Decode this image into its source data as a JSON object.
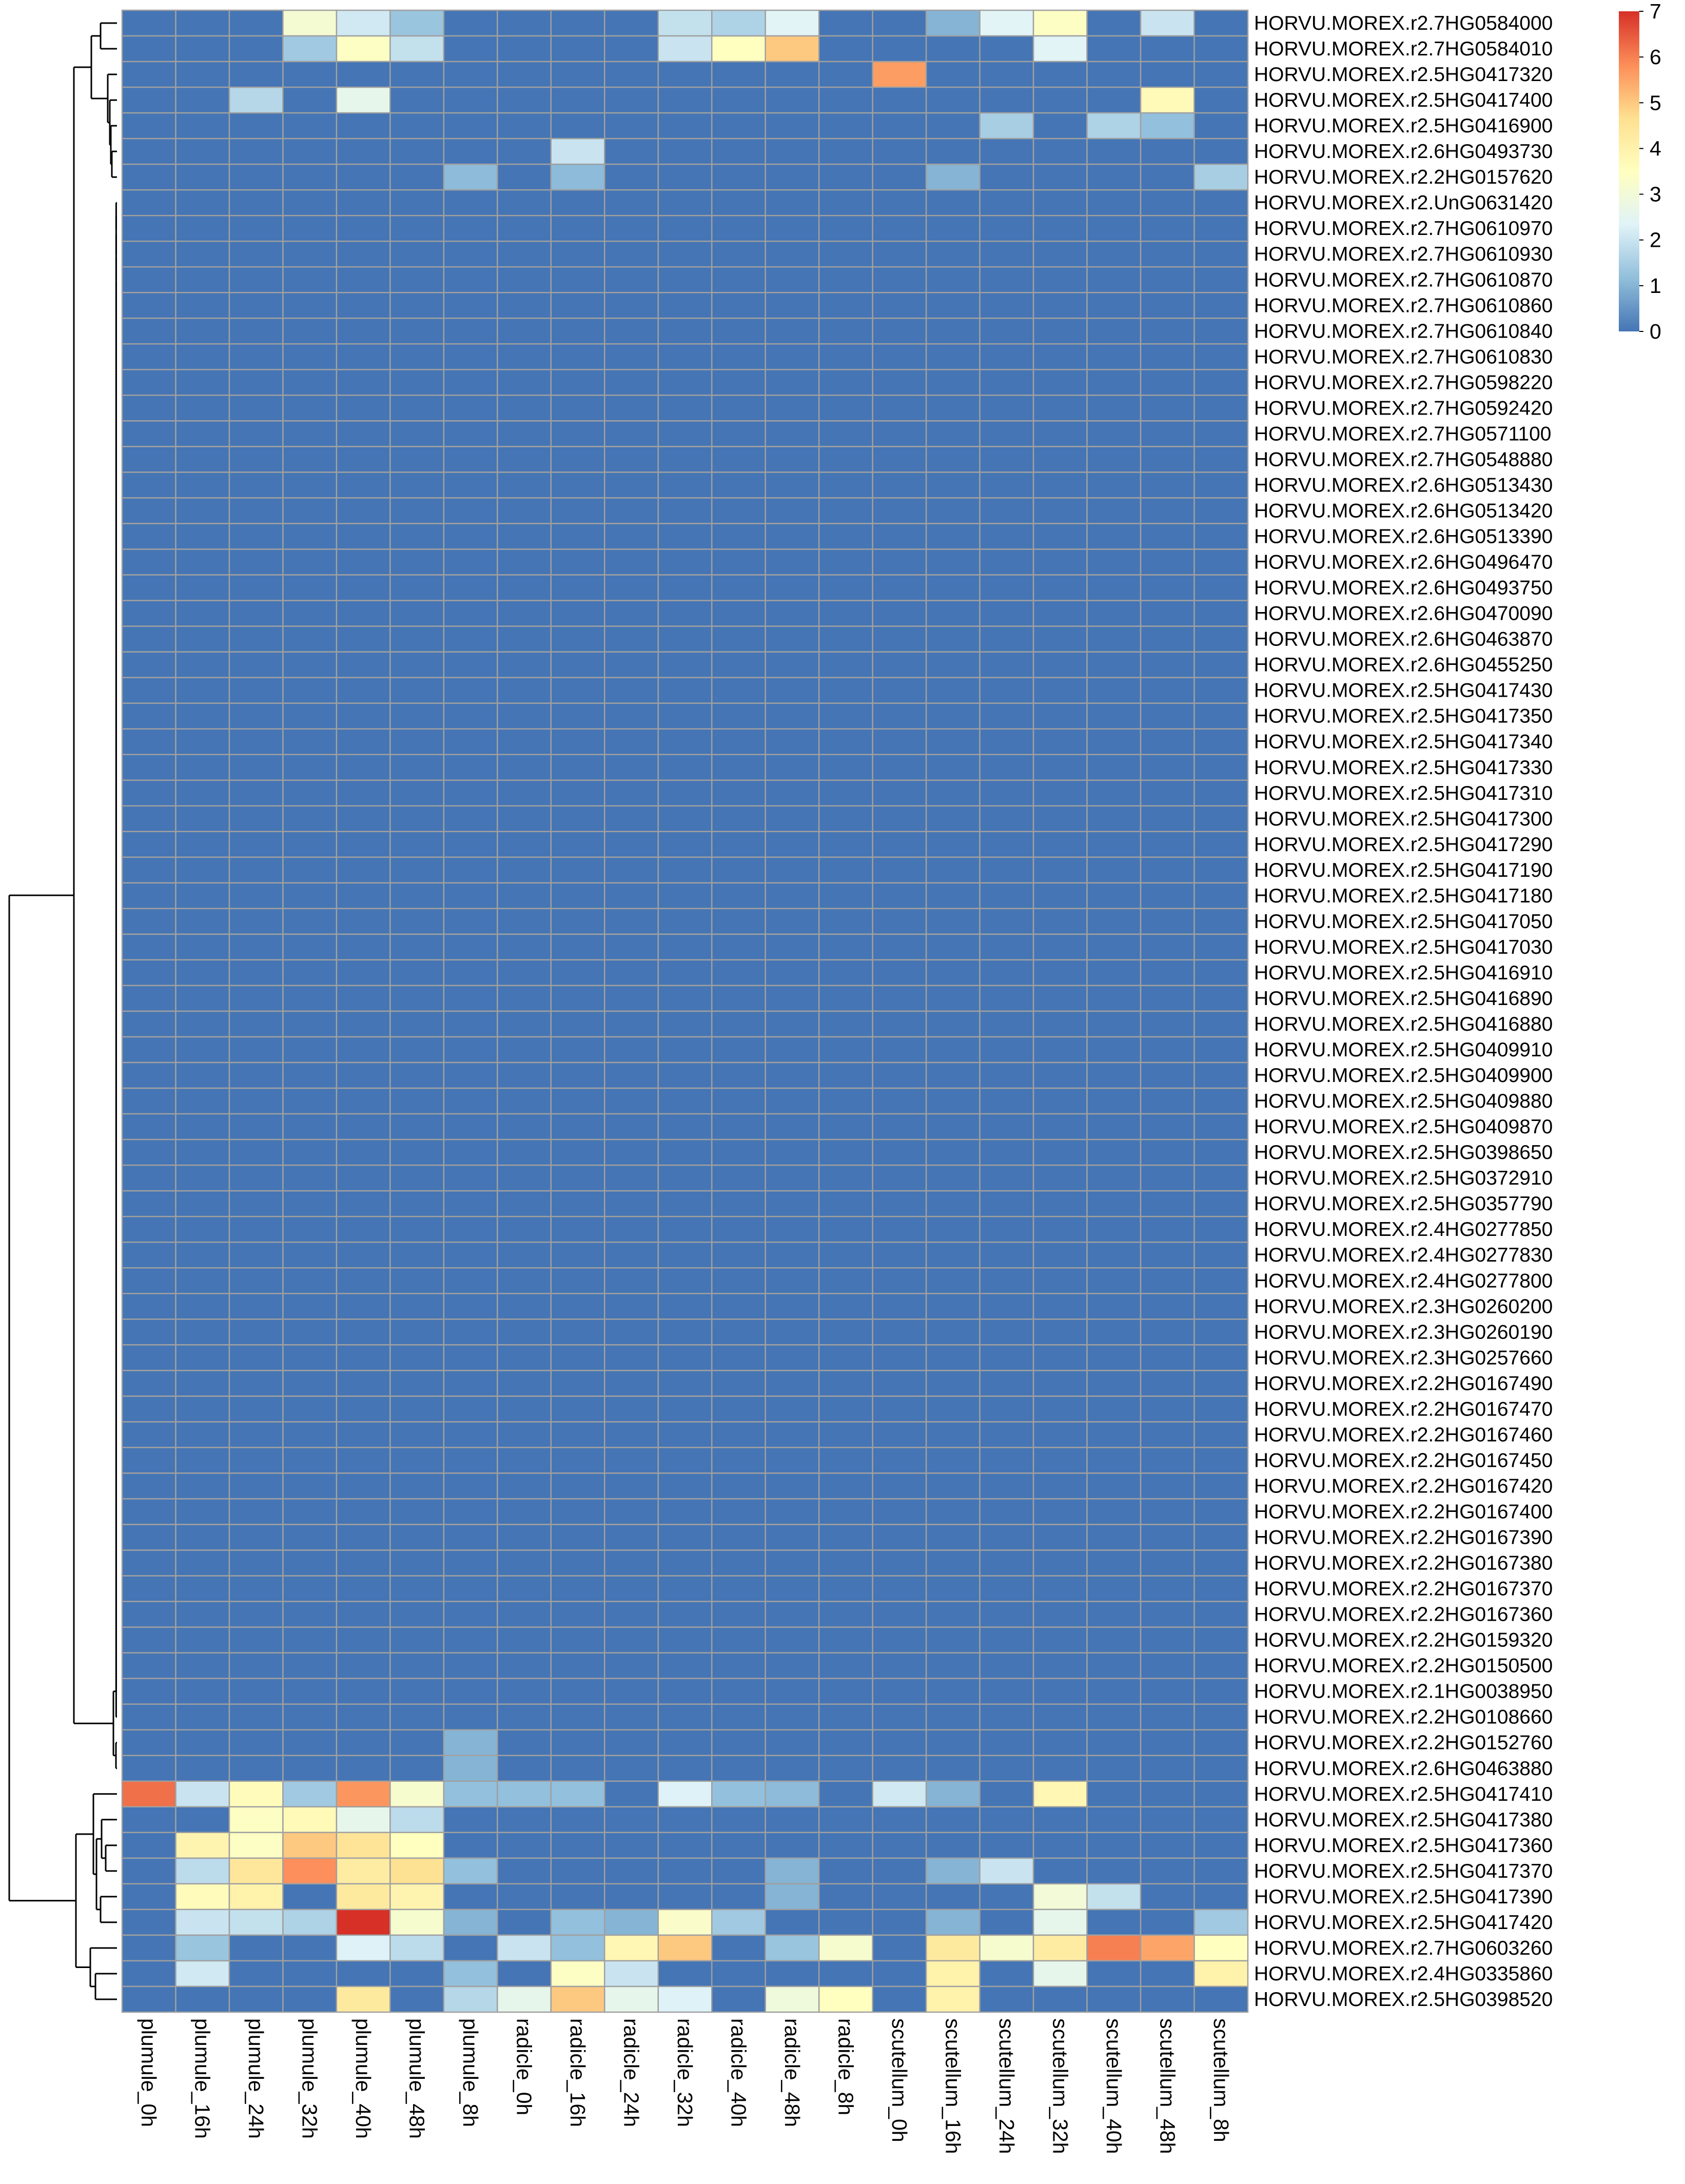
{
  "chart_data": {
    "type": "heatmap",
    "title": "",
    "xlabel": "",
    "ylabel": "",
    "columns": [
      "plumule_0h",
      "plumule_16h",
      "plumule_24h",
      "plumule_32h",
      "plumule_40h",
      "plumule_48h",
      "plumule_8h",
      "radicle_0h",
      "radicle_16h",
      "radicle_24h",
      "radicle_32h",
      "radicle_40h",
      "radicle_48h",
      "radicle_8h",
      "scutellum_0h",
      "scutellum_16h",
      "scutellum_24h",
      "scutellum_32h",
      "scutellum_40h",
      "scutellum_48h",
      "scutellum_8h"
    ],
    "rows": [
      "HORVU.MOREX.r2.7HG0584000",
      "HORVU.MOREX.r2.7HG0584010",
      "HORVU.MOREX.r2.5HG0417320",
      "HORVU.MOREX.r2.5HG0417400",
      "HORVU.MOREX.r2.5HG0416900",
      "HORVU.MOREX.r2.6HG0493730",
      "HORVU.MOREX.r2.2HG0157620",
      "HORVU.MOREX.r2.UnG0631420",
      "HORVU.MOREX.r2.7HG0610970",
      "HORVU.MOREX.r2.7HG0610930",
      "HORVU.MOREX.r2.7HG0610870",
      "HORVU.MOREX.r2.7HG0610860",
      "HORVU.MOREX.r2.7HG0610840",
      "HORVU.MOREX.r2.7HG0610830",
      "HORVU.MOREX.r2.7HG0598220",
      "HORVU.MOREX.r2.7HG0592420",
      "HORVU.MOREX.r2.7HG0571100",
      "HORVU.MOREX.r2.7HG0548880",
      "HORVU.MOREX.r2.6HG0513430",
      "HORVU.MOREX.r2.6HG0513420",
      "HORVU.MOREX.r2.6HG0513390",
      "HORVU.MOREX.r2.6HG0496470",
      "HORVU.MOREX.r2.6HG0493750",
      "HORVU.MOREX.r2.6HG0470090",
      "HORVU.MOREX.r2.6HG0463870",
      "HORVU.MOREX.r2.6HG0455250",
      "HORVU.MOREX.r2.5HG0417430",
      "HORVU.MOREX.r2.5HG0417350",
      "HORVU.MOREX.r2.5HG0417340",
      "HORVU.MOREX.r2.5HG0417330",
      "HORVU.MOREX.r2.5HG0417310",
      "HORVU.MOREX.r2.5HG0417300",
      "HORVU.MOREX.r2.5HG0417290",
      "HORVU.MOREX.r2.5HG0417190",
      "HORVU.MOREX.r2.5HG0417180",
      "HORVU.MOREX.r2.5HG0417050",
      "HORVU.MOREX.r2.5HG0417030",
      "HORVU.MOREX.r2.5HG0416910",
      "HORVU.MOREX.r2.5HG0416890",
      "HORVU.MOREX.r2.5HG0416880",
      "HORVU.MOREX.r2.5HG0409910",
      "HORVU.MOREX.r2.5HG0409900",
      "HORVU.MOREX.r2.5HG0409880",
      "HORVU.MOREX.r2.5HG0409870",
      "HORVU.MOREX.r2.5HG0398650",
      "HORVU.MOREX.r2.5HG0372910",
      "HORVU.MOREX.r2.5HG0357790",
      "HORVU.MOREX.r2.4HG0277850",
      "HORVU.MOREX.r2.4HG0277830",
      "HORVU.MOREX.r2.4HG0277800",
      "HORVU.MOREX.r2.3HG0260200",
      "HORVU.MOREX.r2.3HG0260190",
      "HORVU.MOREX.r2.3HG0257660",
      "HORVU.MOREX.r2.2HG0167490",
      "HORVU.MOREX.r2.2HG0167470",
      "HORVU.MOREX.r2.2HG0167460",
      "HORVU.MOREX.r2.2HG0167450",
      "HORVU.MOREX.r2.2HG0167420",
      "HORVU.MOREX.r2.2HG0167400",
      "HORVU.MOREX.r2.2HG0167390",
      "HORVU.MOREX.r2.2HG0167380",
      "HORVU.MOREX.r2.2HG0167370",
      "HORVU.MOREX.r2.2HG0167360",
      "HORVU.MOREX.r2.2HG0159320",
      "HORVU.MOREX.r2.2HG0150500",
      "HORVU.MOREX.r2.1HG0038950",
      "HORVU.MOREX.r2.2HG0108660",
      "HORVU.MOREX.r2.2HG0152760",
      "HORVU.MOREX.r2.6HG0463880",
      "HORVU.MOREX.r2.5HG0417410",
      "HORVU.MOREX.r2.5HG0417380",
      "HORVU.MOREX.r2.5HG0417360",
      "HORVU.MOREX.r2.5HG0417370",
      "HORVU.MOREX.r2.5HG0417390",
      "HORVU.MOREX.r2.5HG0417420",
      "HORVU.MOREX.r2.7HG0603260",
      "HORVU.MOREX.r2.4HG0335860",
      "HORVU.MOREX.r2.5HG0398520"
    ],
    "nonzero": [
      {
        "row": 0,
        "values": [
          0,
          0,
          0,
          3.1,
          2.1,
          1.3,
          0,
          0,
          0,
          0,
          1.9,
          1.6,
          2.4,
          0,
          0,
          1.0,
          2.4,
          3.4,
          0,
          2.0,
          0
        ]
      },
      {
        "row": 1,
        "values": [
          0,
          0,
          0,
          1.4,
          3.4,
          1.9,
          0,
          0,
          0,
          0,
          2.0,
          3.5,
          5.0,
          0,
          0,
          0,
          0,
          2.4,
          0,
          0,
          0
        ]
      },
      {
        "row": 2,
        "values": [
          0,
          0,
          0,
          0,
          0,
          0,
          0,
          0,
          0,
          0,
          0,
          0,
          0,
          0,
          5.6,
          0,
          0,
          0,
          0,
          0,
          0
        ]
      },
      {
        "row": 3,
        "values": [
          0,
          0,
          1.7,
          0,
          2.6,
          0,
          0,
          0,
          0,
          0,
          0,
          0,
          0,
          0,
          0,
          0,
          0,
          0,
          0,
          3.7,
          0
        ]
      },
      {
        "row": 4,
        "values": [
          0,
          0,
          0,
          0,
          0,
          0,
          0,
          0,
          0,
          0,
          0,
          0,
          0,
          0,
          0,
          0,
          1.5,
          0,
          1.6,
          1.2,
          0
        ]
      },
      {
        "row": 5,
        "values": [
          0,
          0,
          0,
          0,
          0,
          0,
          0,
          0,
          2.0,
          0,
          0,
          0,
          0,
          0,
          0,
          0,
          0,
          0,
          0,
          0,
          0
        ]
      },
      {
        "row": 6,
        "values": [
          0,
          0,
          0,
          0,
          0,
          0,
          1.1,
          0,
          1.1,
          0,
          0,
          0,
          0,
          0,
          0,
          1.0,
          0,
          0,
          0,
          0,
          1.5
        ]
      },
      {
        "row": 67,
        "values": [
          0,
          0,
          0,
          0,
          0,
          0,
          1.0,
          0,
          0,
          0,
          0,
          0,
          0,
          0,
          0,
          0,
          0,
          0,
          0,
          0,
          0
        ]
      },
      {
        "row": 68,
        "values": [
          0,
          0,
          0,
          0,
          0,
          0,
          1.0,
          0,
          0,
          0,
          0,
          0,
          0,
          0,
          0,
          0,
          0,
          0,
          0,
          0,
          0
        ]
      },
      {
        "row": 69,
        "values": [
          6.2,
          2.0,
          3.6,
          1.4,
          5.7,
          3.2,
          1.2,
          1.2,
          1.2,
          0,
          2.3,
          1.2,
          1.1,
          0,
          2.1,
          1.0,
          0,
          3.8,
          0,
          0,
          0
        ]
      },
      {
        "row": 70,
        "values": [
          0,
          0,
          3.4,
          3.7,
          2.6,
          1.8,
          0,
          0,
          0,
          0,
          0,
          0,
          0,
          0,
          0,
          0,
          0,
          0,
          0,
          0,
          0
        ]
      },
      {
        "row": 71,
        "values": [
          0,
          3.9,
          3.4,
          5.0,
          4.5,
          3.5,
          0,
          0,
          0,
          0,
          0,
          0,
          0,
          0,
          0,
          0,
          0,
          0,
          0,
          0,
          0
        ]
      },
      {
        "row": 72,
        "values": [
          0,
          1.8,
          4.4,
          5.8,
          4.2,
          4.6,
          1.2,
          0,
          0,
          0,
          0,
          0,
          1.0,
          0,
          0,
          1.0,
          2.0,
          0,
          0,
          0,
          0
        ]
      },
      {
        "row": 73,
        "values": [
          0,
          3.6,
          4.0,
          0,
          4.3,
          3.9,
          0,
          0,
          0,
          0,
          0,
          0,
          1.0,
          0,
          0,
          0,
          0,
          3.0,
          1.9,
          0,
          0
        ]
      },
      {
        "row": 74,
        "values": [
          0,
          2.0,
          1.9,
          1.6,
          7.0,
          3.2,
          1.0,
          0,
          1.2,
          1.0,
          3.3,
          1.4,
          0,
          0,
          0,
          1.0,
          0,
          2.6,
          0,
          0,
          1.4
        ]
      },
      {
        "row": 75,
        "values": [
          0,
          1.3,
          0,
          0,
          2.3,
          1.8,
          0,
          2.0,
          1.2,
          3.8,
          5.0,
          0,
          1.3,
          3.2,
          0,
          4.3,
          3.2,
          4.2,
          6.0,
          5.5,
          3.5
        ]
      },
      {
        "row": 76,
        "values": [
          0,
          2.1,
          0,
          0,
          0,
          0,
          1.2,
          0,
          3.4,
          2.0,
          0,
          0,
          0,
          0,
          0,
          4.0,
          0,
          2.6,
          0,
          0,
          4.0
        ]
      },
      {
        "row": 77,
        "values": [
          0,
          0,
          0,
          0,
          4.3,
          0,
          1.7,
          2.6,
          5.0,
          2.6,
          2.3,
          0,
          2.9,
          3.5,
          0,
          4.0,
          0,
          0,
          0,
          0,
          0
        ]
      }
    ],
    "legend": {
      "ticks": [
        "0",
        "1",
        "2",
        "3",
        "4",
        "5",
        "6",
        "7"
      ],
      "min": 0,
      "max": 7,
      "colors": [
        "#4575b4",
        "#91bfdb",
        "#e0f3f8",
        "#ffffbf",
        "#fee090",
        "#fc8d59",
        "#d73027"
      ],
      "placement": "top-right"
    },
    "row_dendrogram": true,
    "grid": true
  }
}
